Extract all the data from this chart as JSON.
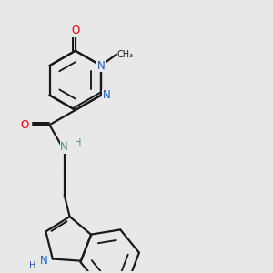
{
  "bg_color": "#e8e8e8",
  "bond_color": "#1a1a1a",
  "nitrogen_color": "#1a5cbf",
  "oxygen_color": "#dd0000",
  "teal_color": "#4a9090",
  "line_width": 1.6,
  "font_size_atom": 8.5,
  "font_size_small": 7.0,
  "xlim": [
    0,
    3.0
  ],
  "ylim": [
    0,
    3.0
  ]
}
